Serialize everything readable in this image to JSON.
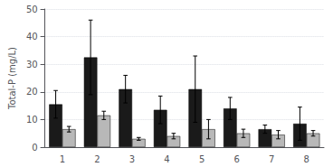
{
  "chart_data": {
    "type": "bar",
    "categories": [
      "1",
      "2",
      "3",
      "4",
      "5",
      "6",
      "7",
      "8"
    ],
    "series": [
      {
        "color": "#1a1a1a",
        "values": [
          15.5,
          32.5,
          21.0,
          13.5,
          21.0,
          14.0,
          6.5,
          8.5
        ],
        "errors": [
          5.0,
          13.5,
          5.0,
          5.0,
          12.0,
          4.0,
          1.5,
          6.0
        ]
      },
      {
        "color": "#b8b8b8",
        "values": [
          6.5,
          11.5,
          3.0,
          4.0,
          6.5,
          5.0,
          4.5,
          5.0
        ],
        "errors": [
          1.0,
          1.5,
          0.5,
          1.0,
          3.5,
          1.5,
          1.5,
          1.0
        ]
      }
    ],
    "ylabel": "Total-P (mg/L)",
    "ylim": [
      0,
      50
    ],
    "yticks": [
      0,
      10,
      20,
      30,
      40,
      50
    ],
    "grid": true
  }
}
